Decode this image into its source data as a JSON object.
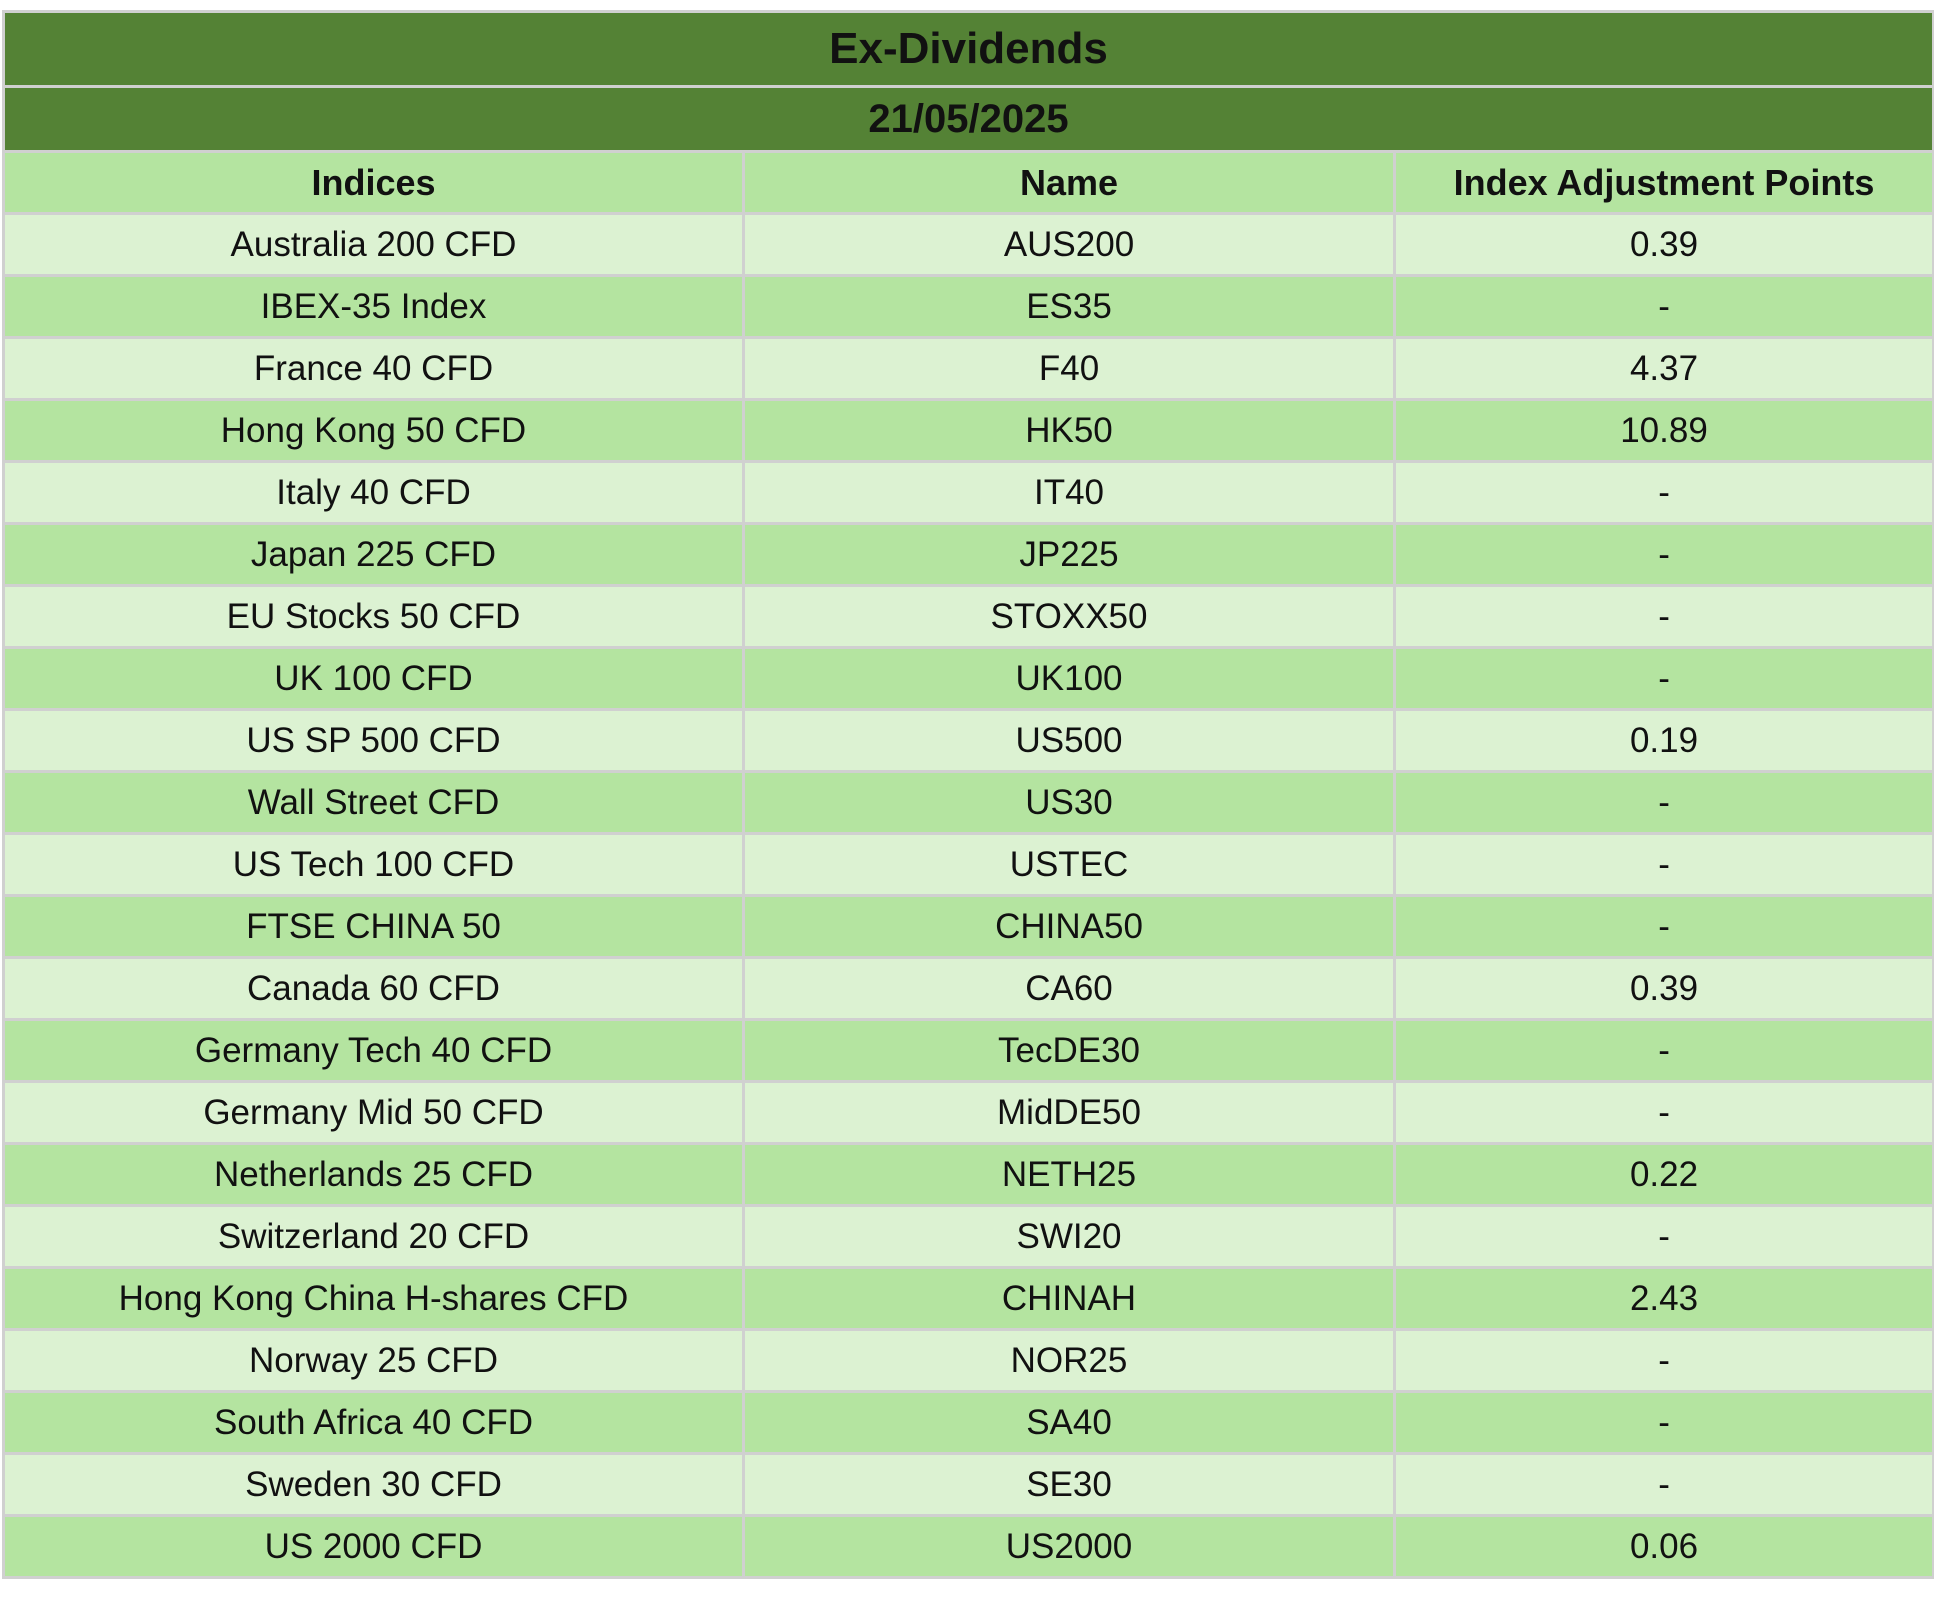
{
  "title": "Ex-Dividends",
  "date": "21/05/2025",
  "columns": [
    "Indices",
    "Name",
    "Index Adjustment Points"
  ],
  "rows": [
    {
      "index": "Australia 200 CFD",
      "name": "AUS200",
      "points": "0.39"
    },
    {
      "index": "IBEX-35 Index",
      "name": "ES35",
      "points": "-"
    },
    {
      "index": "France 40 CFD",
      "name": "F40",
      "points": "4.37"
    },
    {
      "index": "Hong Kong 50 CFD",
      "name": "HK50",
      "points": "10.89"
    },
    {
      "index": "Italy 40 CFD",
      "name": "IT40",
      "points": "-"
    },
    {
      "index": "Japan 225 CFD",
      "name": "JP225",
      "points": "-"
    },
    {
      "index": "EU Stocks 50 CFD",
      "name": "STOXX50",
      "points": "-"
    },
    {
      "index": "UK 100 CFD",
      "name": "UK100",
      "points": "-"
    },
    {
      "index": "US SP 500 CFD",
      "name": "US500",
      "points": "0.19"
    },
    {
      "index": "Wall Street CFD",
      "name": "US30",
      "points": "-"
    },
    {
      "index": "US Tech 100 CFD",
      "name": "USTEC",
      "points": "-"
    },
    {
      "index": "FTSE CHINA 50",
      "name": "CHINA50",
      "points": "-"
    },
    {
      "index": "Canada 60 CFD",
      "name": "CA60",
      "points": "0.39"
    },
    {
      "index": "Germany Tech 40 CFD",
      "name": "TecDE30",
      "points": "-"
    },
    {
      "index": "Germany Mid 50 CFD",
      "name": "MidDE50",
      "points": "-"
    },
    {
      "index": "Netherlands 25 CFD",
      "name": "NETH25",
      "points": "0.22"
    },
    {
      "index": "Switzerland 20 CFD",
      "name": "SWI20",
      "points": "-"
    },
    {
      "index": "Hong Kong China H-shares CFD",
      "name": "CHINAH",
      "points": "2.43"
    },
    {
      "index": "Norway 25 CFD",
      "name": "NOR25",
      "points": "-"
    },
    {
      "index": "South Africa 40 CFD",
      "name": "SA40",
      "points": "-"
    },
    {
      "index": "Sweden 30 CFD",
      "name": "SE30",
      "points": "-"
    },
    {
      "index": "US 2000 CFD",
      "name": "US2000",
      "points": "0.06"
    }
  ],
  "colors": {
    "title_bg": "#548235",
    "header_bg": "#b4e4a0",
    "row_light": "#dcf2d2",
    "row_dark": "#b4e4a0",
    "grid": "#d0d0d0"
  }
}
